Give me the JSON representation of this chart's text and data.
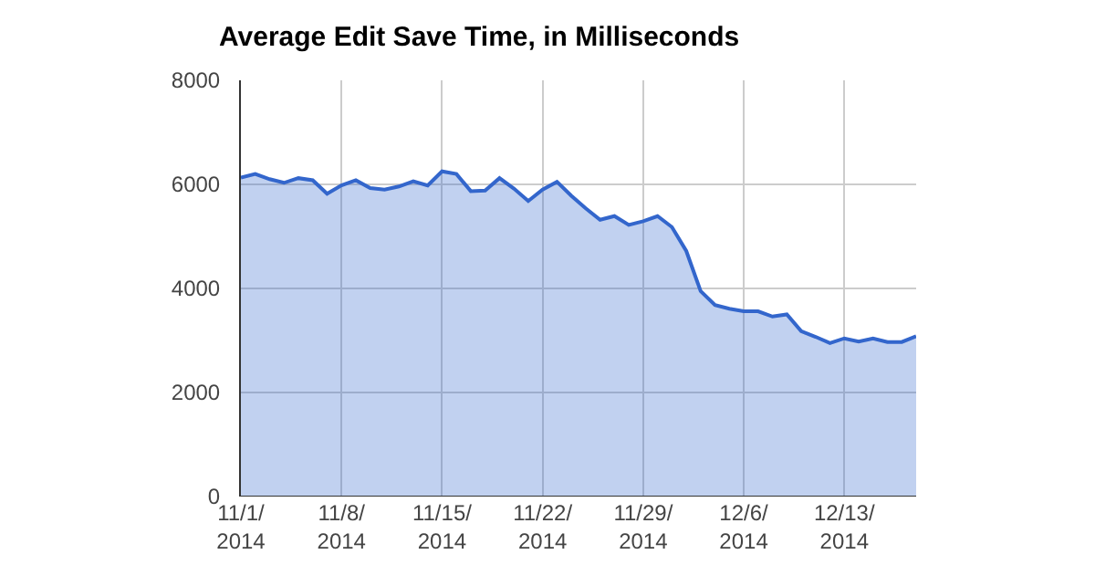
{
  "chart_data": {
    "type": "area",
    "title": "Average Edit Save Time, in Milliseconds",
    "x": [
      "2014-11-01",
      "2014-11-02",
      "2014-11-03",
      "2014-11-04",
      "2014-11-05",
      "2014-11-06",
      "2014-11-07",
      "2014-11-08",
      "2014-11-09",
      "2014-11-10",
      "2014-11-11",
      "2014-11-12",
      "2014-11-13",
      "2014-11-14",
      "2014-11-15",
      "2014-11-16",
      "2014-11-17",
      "2014-11-18",
      "2014-11-19",
      "2014-11-20",
      "2014-11-21",
      "2014-11-22",
      "2014-11-23",
      "2014-11-24",
      "2014-11-25",
      "2014-11-26",
      "2014-11-27",
      "2014-11-28",
      "2014-11-29",
      "2014-11-30",
      "2014-12-01",
      "2014-12-02",
      "2014-12-03",
      "2014-12-04",
      "2014-12-05",
      "2014-12-06",
      "2014-12-07",
      "2014-12-08",
      "2014-12-09",
      "2014-12-10",
      "2014-12-11",
      "2014-12-12",
      "2014-12-13",
      "2014-12-14",
      "2014-12-15",
      "2014-12-16",
      "2014-12-17",
      "2014-12-18"
    ],
    "series": [
      {
        "color": "#3366cc",
        "values": [
          6130,
          6200,
          6100,
          6030,
          6120,
          6080,
          5820,
          5980,
          6080,
          5930,
          5900,
          5960,
          6060,
          5980,
          6250,
          6200,
          5870,
          5880,
          6120,
          5920,
          5680,
          5900,
          6050,
          5780,
          5540,
          5320,
          5390,
          5220,
          5290,
          5390,
          5180,
          4720,
          3950,
          3680,
          3610,
          3560,
          3560,
          3460,
          3500,
          3180,
          3070,
          2950,
          3040,
          2980,
          3040,
          2970,
          2970,
          3080
        ]
      }
    ],
    "xlim": [
      "2014-11-01",
      "2014-12-18"
    ],
    "xticks": [
      {
        "value": "2014-11-01",
        "label": "11/1/2014"
      },
      {
        "value": "2014-11-08",
        "label": "11/8/2014"
      },
      {
        "value": "2014-11-15",
        "label": "11/15/2014"
      },
      {
        "value": "2014-11-22",
        "label": "11/22/2014"
      },
      {
        "value": "2014-11-29",
        "label": "11/29/2014"
      },
      {
        "value": "2014-12-06",
        "label": "12/6/2014"
      },
      {
        "value": "2014-12-13",
        "label": "12/13/2014"
      }
    ],
    "ylim": [
      0,
      8000
    ],
    "yticks": [
      0,
      2000,
      4000,
      6000,
      8000
    ],
    "grid": true
  }
}
